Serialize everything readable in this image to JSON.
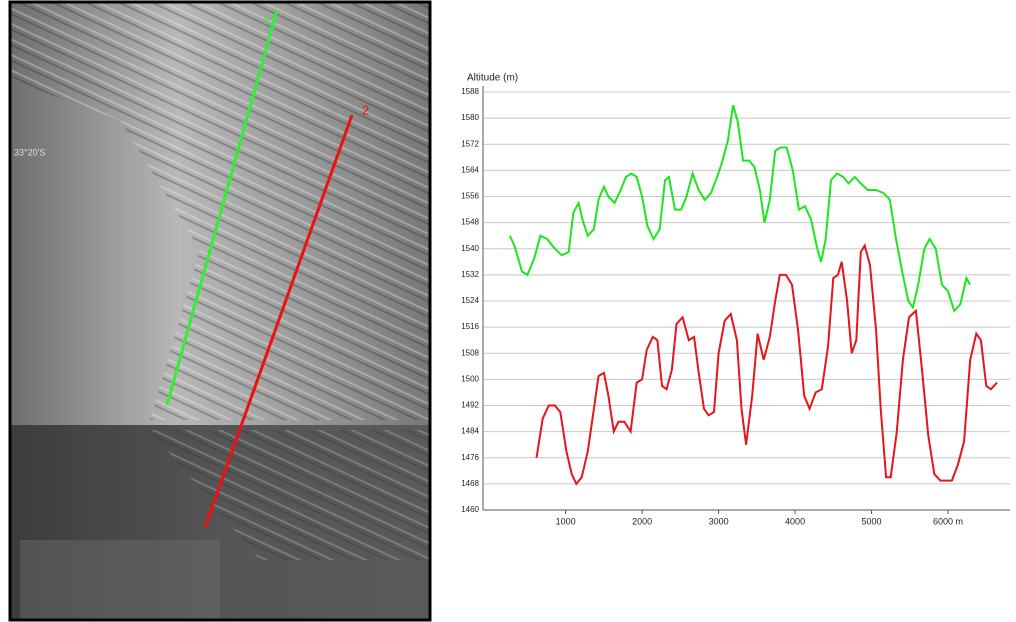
{
  "map": {
    "line_labels": [
      "1",
      "2"
    ],
    "latitude_label": "33°20'S"
  },
  "chart_data": {
    "type": "line",
    "ylabel": "Altitude (m)",
    "xlim": [
      -80,
      6810
    ],
    "ylim": [
      1460,
      1588
    ],
    "xticks": [
      1000,
      2000,
      3000,
      4000,
      5000,
      {
        "value": 6000,
        "label": "6000 m"
      }
    ],
    "yticks": [
      1460,
      1468,
      1476,
      1484,
      1492,
      1500,
      1508,
      1516,
      1524,
      1532,
      1540,
      1548,
      1556,
      1564,
      1572,
      1580,
      1588
    ],
    "grid": true,
    "series": [
      {
        "color": "#1ee61e",
        "x": [
          270,
          330,
          430,
          500,
          590,
          670,
          760,
          860,
          950,
          1040,
          1100,
          1170,
          1220,
          1290,
          1370,
          1430,
          1500,
          1560,
          1640,
          1720,
          1790,
          1860,
          1930,
          2000,
          2070,
          2150,
          2230,
          2300,
          2350,
          2430,
          2510,
          2580,
          2660,
          2740,
          2820,
          2900,
          2980,
          3040,
          3120,
          3190,
          3250,
          3320,
          3400,
          3470,
          3540,
          3600,
          3670,
          3740,
          3810,
          3890,
          3970,
          4050,
          4130,
          4210,
          4290,
          4340,
          4400,
          4470,
          4550,
          4630,
          4700,
          4780,
          4860,
          4950,
          5060,
          5160,
          5240,
          5320,
          5400,
          5480,
          5540,
          5610,
          5690,
          5760,
          5840,
          5920,
          6000,
          6080,
          6160,
          6240,
          6290
        ],
        "values": [
          1544,
          1541,
          1533,
          1532,
          1537,
          1544,
          1543,
          1540,
          1538,
          1539,
          1551,
          1554,
          1549,
          1544,
          1546,
          1555,
          1559,
          1556,
          1554,
          1558,
          1562,
          1563,
          1562,
          1556,
          1547,
          1543,
          1546,
          1561,
          1562,
          1552,
          1552,
          1556,
          1563,
          1558,
          1555,
          1557,
          1562,
          1566,
          1573,
          1584,
          1579,
          1567,
          1567,
          1565,
          1558,
          1548,
          1555,
          1570,
          1571,
          1571,
          1564,
          1552,
          1553,
          1549,
          1540,
          1536,
          1543,
          1561,
          1563,
          1562,
          1560,
          1562,
          1560,
          1558,
          1558,
          1557,
          1555,
          1543,
          1533,
          1524,
          1522,
          1529,
          1540,
          1543,
          1540,
          1529,
          1527,
          1521,
          1523,
          1531,
          1529
        ]
      },
      {
        "color": "#e8141b",
        "x": [
          620,
          700,
          780,
          860,
          930,
          1010,
          1080,
          1140,
          1210,
          1290,
          1370,
          1430,
          1500,
          1560,
          1630,
          1690,
          1770,
          1850,
          1930,
          2000,
          2060,
          2140,
          2200,
          2260,
          2320,
          2390,
          2450,
          2530,
          2610,
          2680,
          2740,
          2810,
          2870,
          2940,
          3000,
          3080,
          3160,
          3240,
          3300,
          3360,
          3440,
          3510,
          3590,
          3670,
          3740,
          3800,
          3880,
          3960,
          4040,
          4120,
          4190,
          4270,
          4350,
          4430,
          4500,
          4560,
          4610,
          4680,
          4740,
          4800,
          4860,
          4910,
          4980,
          5060,
          5120,
          5190,
          5250,
          5330,
          5410,
          5490,
          5580,
          5660,
          5740,
          5820,
          5900,
          5970,
          6050,
          6130,
          6210,
          6290,
          6370,
          6430,
          6500,
          6560,
          6640
        ],
        "values": [
          1476,
          1488,
          1492,
          1492,
          1490,
          1478,
          1471,
          1468,
          1470,
          1478,
          1491,
          1501,
          1502,
          1495,
          1484,
          1487,
          1487,
          1484,
          1499,
          1500,
          1509,
          1513,
          1512,
          1498,
          1497,
          1503,
          1517,
          1519,
          1512,
          1513,
          1502,
          1491,
          1489,
          1490,
          1508,
          1518,
          1520,
          1512,
          1491,
          1480,
          1495,
          1514,
          1506,
          1513,
          1524,
          1532,
          1532,
          1529,
          1515,
          1495,
          1491,
          1496,
          1497,
          1510,
          1531,
          1532,
          1536,
          1524,
          1508,
          1512,
          1539,
          1541,
          1535,
          1515,
          1491,
          1470,
          1470,
          1484,
          1506,
          1519,
          1521,
          1503,
          1483,
          1471,
          1469,
          1469,
          1469,
          1474,
          1481,
          1506,
          1514,
          1512,
          1498,
          1497,
          1499
        ]
      }
    ]
  }
}
